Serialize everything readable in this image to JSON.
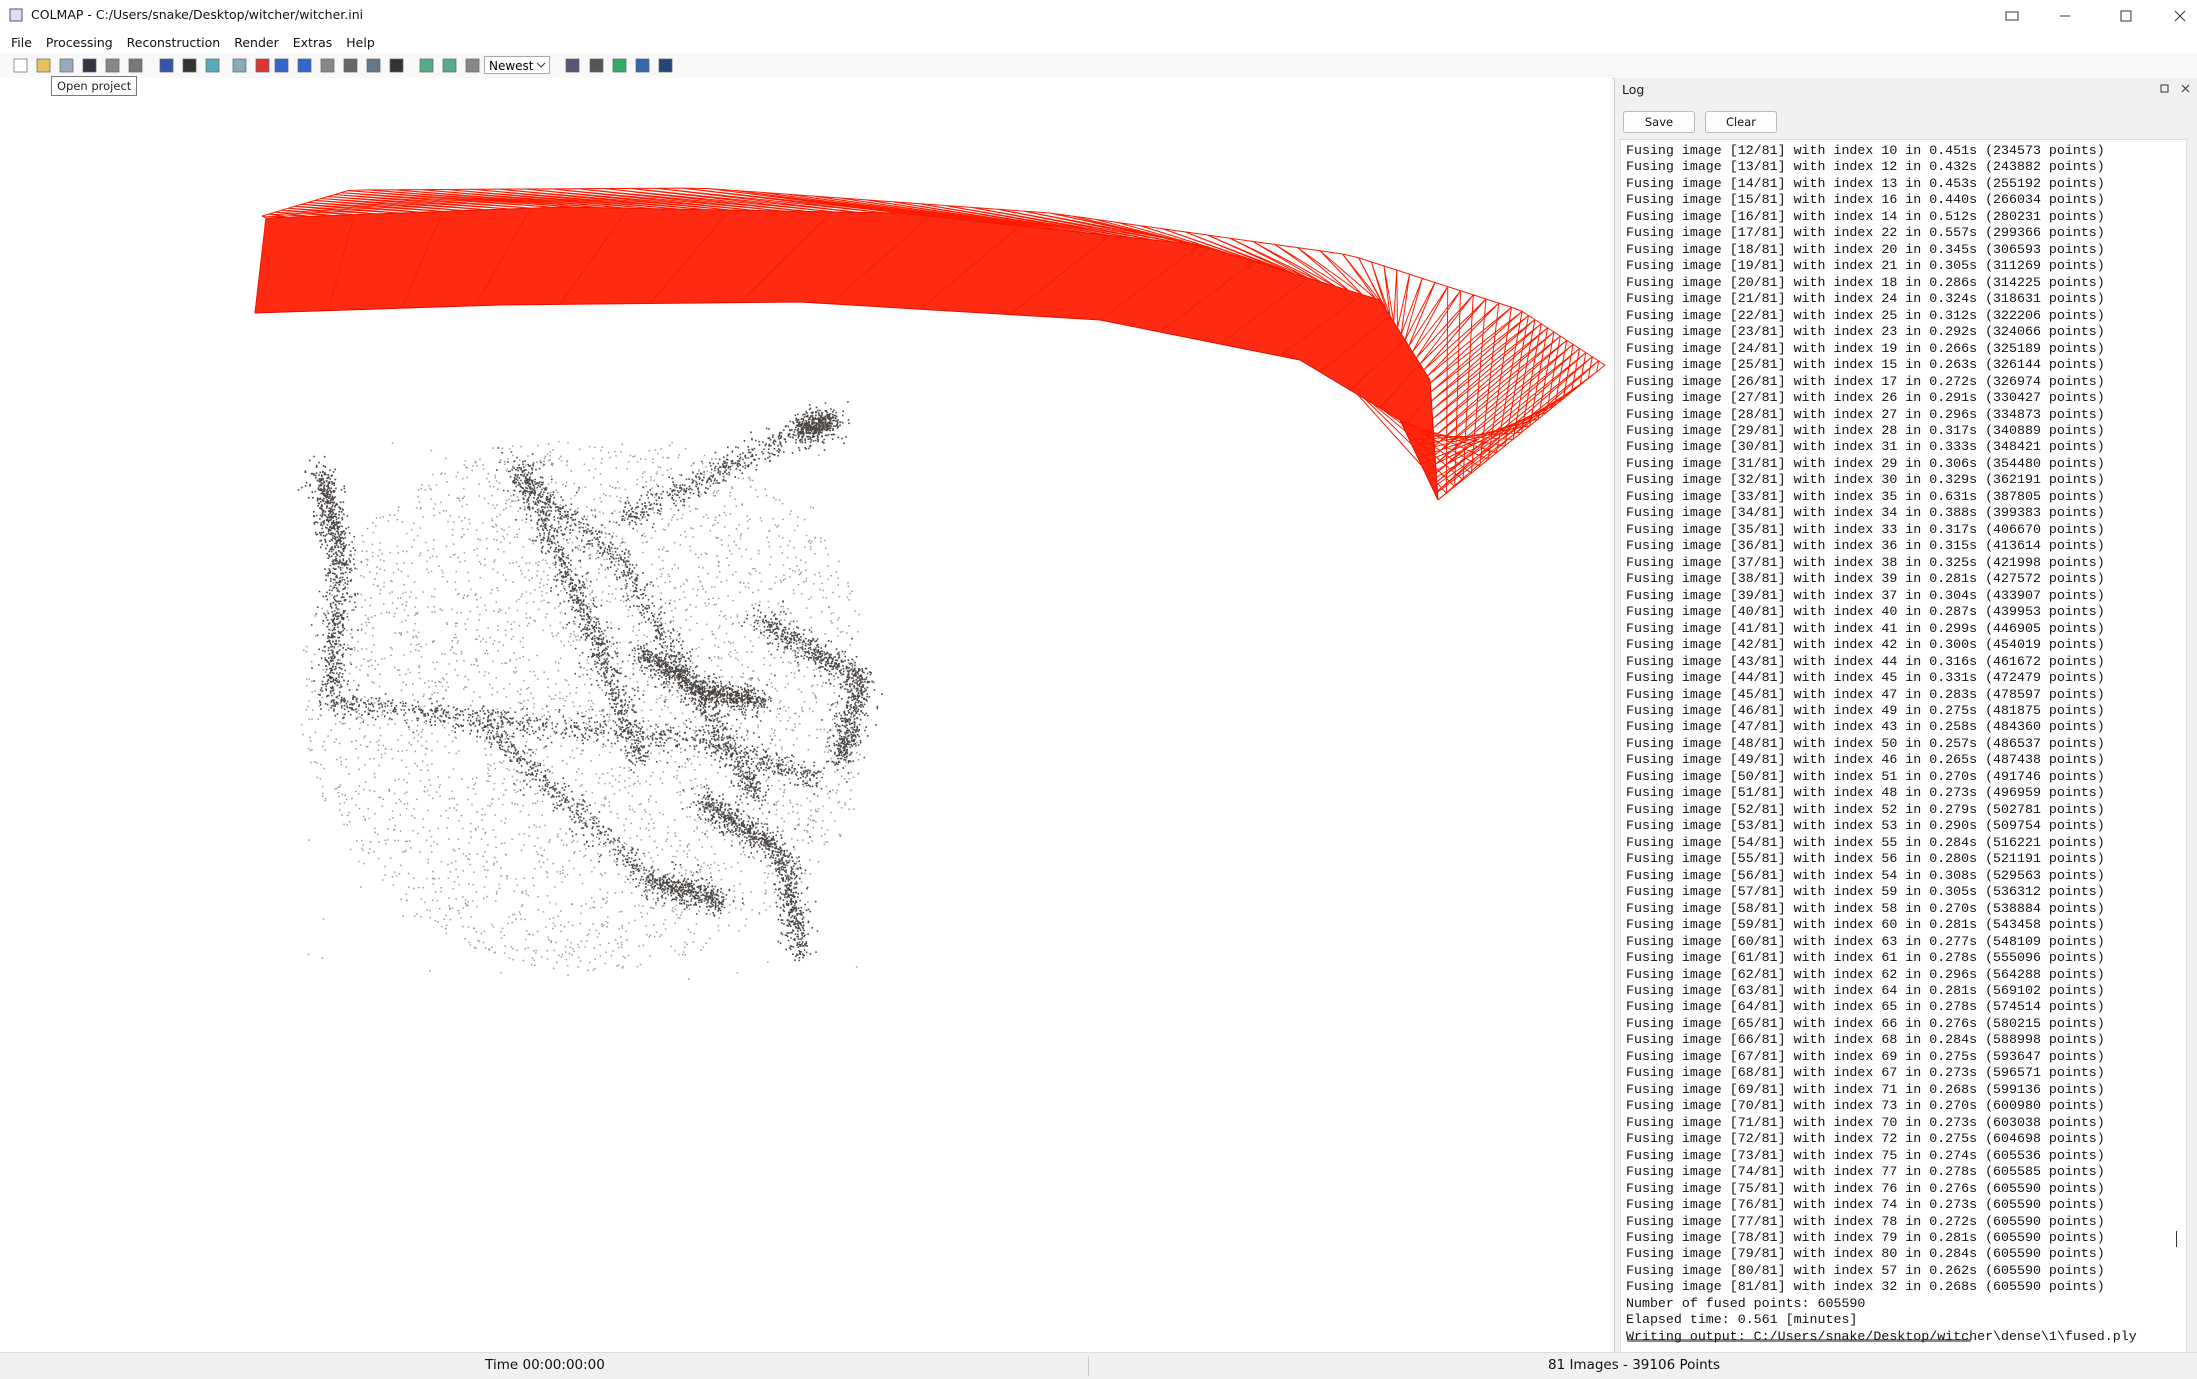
{
  "window": {
    "title": "COLMAP - C:/Users/snake/Desktop/witcher/witcher.ini"
  },
  "menu": [
    "File",
    "Processing",
    "Reconstruction",
    "Render",
    "Extras",
    "Help"
  ],
  "toolbar": {
    "combo": "Newest",
    "tooltip": "Open project"
  },
  "log": {
    "title": "Log",
    "buttons": [
      "Save",
      "Clear"
    ],
    "lines": [
      "Fusing image [12/81] with index 10 in 0.451s (234573 points)",
      "Fusing image [13/81] with index 12 in 0.432s (243882 points)",
      "Fusing image [14/81] with index 13 in 0.453s (255192 points)",
      "Fusing image [15/81] with index 16 in 0.440s (266034 points)",
      "Fusing image [16/81] with index 14 in 0.512s (280231 points)",
      "Fusing image [17/81] with index 22 in 0.557s (299366 points)",
      "Fusing image [18/81] with index 20 in 0.345s (306593 points)",
      "Fusing image [19/81] with index 21 in 0.305s (311269 points)",
      "Fusing image [20/81] with index 18 in 0.286s (314225 points)",
      "Fusing image [21/81] with index 24 in 0.324s (318631 points)",
      "Fusing image [22/81] with index 25 in 0.312s (322206 points)",
      "Fusing image [23/81] with index 23 in 0.292s (324066 points)",
      "Fusing image [24/81] with index 19 in 0.266s (325189 points)",
      "Fusing image [25/81] with index 15 in 0.263s (326144 points)",
      "Fusing image [26/81] with index 17 in 0.272s (326974 points)",
      "Fusing image [27/81] with index 26 in 0.291s (330427 points)",
      "Fusing image [28/81] with index 27 in 0.296s (334873 points)",
      "Fusing image [29/81] with index 28 in 0.317s (340889 points)",
      "Fusing image [30/81] with index 31 in 0.333s (348421 points)",
      "Fusing image [31/81] with index 29 in 0.306s (354480 points)",
      "Fusing image [32/81] with index 30 in 0.329s (362191 points)",
      "Fusing image [33/81] with index 35 in 0.631s (387805 points)",
      "Fusing image [34/81] with index 34 in 0.388s (399383 points)",
      "Fusing image [35/81] with index 33 in 0.317s (406670 points)",
      "Fusing image [36/81] with index 36 in 0.315s (413614 points)",
      "Fusing image [37/81] with index 38 in 0.325s (421998 points)",
      "Fusing image [38/81] with index 39 in 0.281s (427572 points)",
      "Fusing image [39/81] with index 37 in 0.304s (433907 points)",
      "Fusing image [40/81] with index 40 in 0.287s (439953 points)",
      "Fusing image [41/81] with index 41 in 0.299s (446905 points)",
      "Fusing image [42/81] with index 42 in 0.300s (454019 points)",
      "Fusing image [43/81] with index 44 in 0.316s (461672 points)",
      "Fusing image [44/81] with index 45 in 0.331s (472479 points)",
      "Fusing image [45/81] with index 47 in 0.283s (478597 points)",
      "Fusing image [46/81] with index 49 in 0.275s (481875 points)",
      "Fusing image [47/81] with index 43 in 0.258s (484360 points)",
      "Fusing image [48/81] with index 50 in 0.257s (486537 points)",
      "Fusing image [49/81] with index 46 in 0.265s (487438 points)",
      "Fusing image [50/81] with index 51 in 0.270s (491746 points)",
      "Fusing image [51/81] with index 48 in 0.273s (496959 points)",
      "Fusing image [52/81] with index 52 in 0.279s (502781 points)",
      "Fusing image [53/81] with index 53 in 0.290s (509754 points)",
      "Fusing image [54/81] with index 55 in 0.284s (516221 points)",
      "Fusing image [55/81] with index 56 in 0.280s (521191 points)",
      "Fusing image [56/81] with index 54 in 0.308s (529563 points)",
      "Fusing image [57/81] with index 59 in 0.305s (536312 points)",
      "Fusing image [58/81] with index 58 in 0.270s (538884 points)",
      "Fusing image [59/81] with index 60 in 0.281s (543458 points)",
      "Fusing image [60/81] with index 63 in 0.277s (548109 points)",
      "Fusing image [61/81] with index 61 in 0.278s (555096 points)",
      "Fusing image [62/81] with index 62 in 0.296s (564288 points)",
      "Fusing image [63/81] with index 64 in 0.281s (569102 points)",
      "Fusing image [64/81] with index 65 in 0.278s (574514 points)",
      "Fusing image [65/81] with index 66 in 0.276s (580215 points)",
      "Fusing image [66/81] with index 68 in 0.284s (588998 points)",
      "Fusing image [67/81] with index 69 in 0.275s (593647 points)",
      "Fusing image [68/81] with index 67 in 0.273s (596571 points)",
      "Fusing image [69/81] with index 71 in 0.268s (599136 points)",
      "Fusing image [70/81] with index 73 in 0.270s (600980 points)",
      "Fusing image [71/81] with index 70 in 0.273s (603038 points)",
      "Fusing image [72/81] with index 72 in 0.275s (604698 points)",
      "Fusing image [73/81] with index 75 in 0.274s (605536 points)",
      "Fusing image [74/81] with index 77 in 0.278s (605585 points)",
      "Fusing image [75/81] with index 76 in 0.276s (605590 points)",
      "Fusing image [76/81] with index 74 in 0.273s (605590 points)",
      "Fusing image [77/81] with index 78 in 0.272s (605590 points)",
      "Fusing image [78/81] with index 79 in 0.281s (605590 points)",
      "Fusing image [79/81] with index 80 in 0.284s (605590 points)",
      "Fusing image [80/81] with index 57 in 0.262s (605590 points)",
      "Fusing image [81/81] with index 32 in 0.268s (605590 points)",
      "Number of fused points: 605590",
      "Elapsed time: 0.561 [minutes]",
      "Writing output: C:/Users/snake/Desktop/witcher\\dense\\1\\fused.ply"
    ]
  },
  "status": {
    "time": "Time 00:00:00:00",
    "summary": "81 Images - 39106 Points"
  }
}
